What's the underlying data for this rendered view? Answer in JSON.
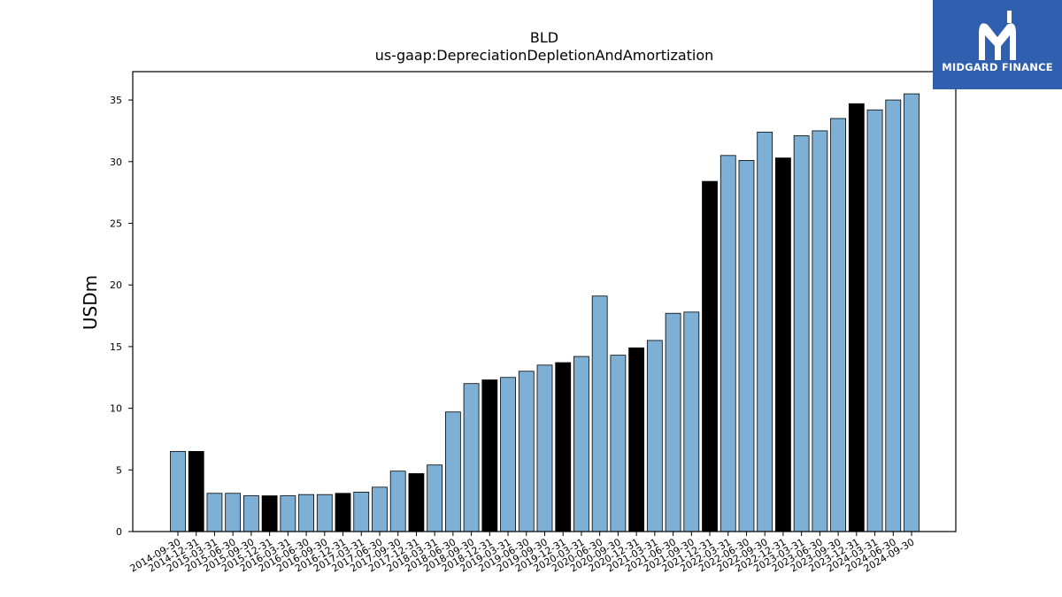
{
  "brand": {
    "name": "MIDGARD FINANCE",
    "bg_color": "#2f5fae",
    "icon": "midgard-m-logo-icon"
  },
  "chart_data": {
    "type": "bar",
    "title": "BLD",
    "subtitle": "us-gaap:DepreciationDepletionAndAmortization",
    "xlabel": "",
    "ylabel": "USDm",
    "ylim": [
      0,
      37.3
    ],
    "yticks": [
      0,
      5,
      10,
      15,
      20,
      25,
      30,
      35
    ],
    "grid": false,
    "colors": {
      "quarter": "#7eb0d5",
      "year_end": "#000000",
      "edge": "#000000"
    },
    "categories": [
      "2014-09-30",
      "2014-12-31",
      "2015-03-31",
      "2015-06-30",
      "2015-09-30",
      "2015-12-31",
      "2016-03-31",
      "2016-06-30",
      "2016-09-30",
      "2016-12-31",
      "2017-03-31",
      "2017-06-30",
      "2017-09-30",
      "2017-12-31",
      "2018-03-31",
      "2018-06-30",
      "2018-09-30",
      "2018-12-31",
      "2019-03-31",
      "2019-06-30",
      "2019-09-30",
      "2019-12-31",
      "2020-03-31",
      "2020-06-30",
      "2020-09-30",
      "2020-12-31",
      "2021-03-31",
      "2021-06-30",
      "2021-09-30",
      "2021-12-31",
      "2022-03-31",
      "2022-06-30",
      "2022-09-30",
      "2022-12-31",
      "2023-03-31",
      "2023-06-30",
      "2023-09-30",
      "2023-12-31",
      "2024-03-31",
      "2024-06-30",
      "2024-09-30"
    ],
    "values": [
      6.5,
      6.5,
      3.1,
      3.1,
      2.9,
      2.9,
      2.9,
      3.0,
      3.0,
      3.1,
      3.2,
      3.6,
      4.9,
      4.7,
      5.4,
      9.7,
      12.0,
      12.3,
      12.5,
      13.0,
      13.5,
      13.7,
      14.2,
      19.1,
      14.3,
      14.9,
      15.5,
      17.7,
      17.8,
      28.4,
      30.5,
      30.1,
      32.4,
      30.3,
      32.1,
      32.5,
      33.5,
      34.7,
      34.2,
      35.0,
      35.5
    ],
    "highlight": [
      false,
      true,
      false,
      false,
      false,
      true,
      false,
      false,
      false,
      true,
      false,
      false,
      false,
      true,
      false,
      false,
      false,
      true,
      false,
      false,
      false,
      true,
      false,
      false,
      false,
      true,
      false,
      false,
      false,
      true,
      false,
      false,
      false,
      true,
      false,
      false,
      false,
      true,
      false,
      false,
      false
    ]
  }
}
